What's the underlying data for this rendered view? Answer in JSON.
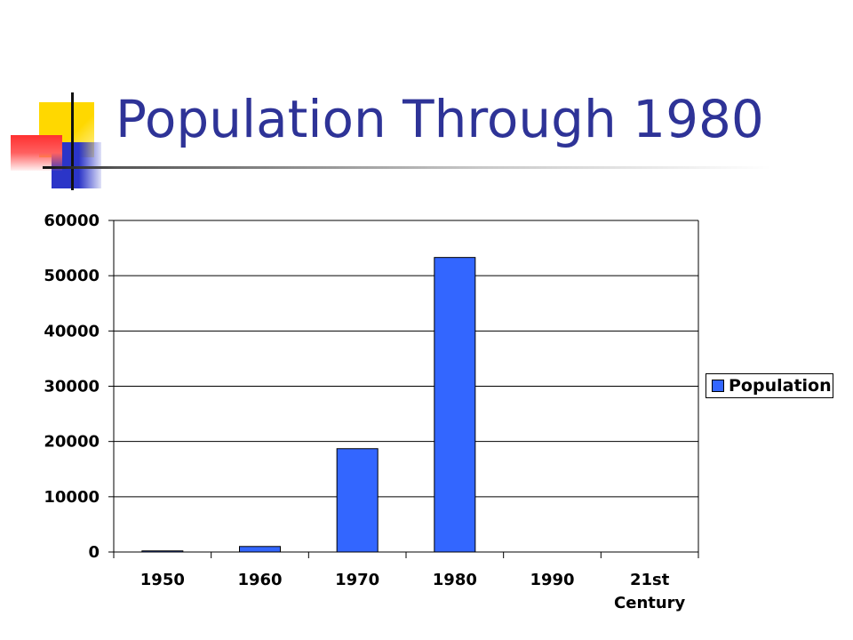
{
  "slide": {
    "title": "Population Through 1980"
  },
  "colors": {
    "title": "#2e3397",
    "bar": "#3366ff",
    "accent_yellow": "#ffd800",
    "accent_blue": "#2b35c8",
    "accent_red": "#ff3030"
  },
  "chart_data": {
    "type": "bar",
    "categories": [
      "1950",
      "1960",
      "1970",
      "1980",
      "1990",
      "21st Century"
    ],
    "category_lines": [
      [
        "1950"
      ],
      [
        "1960"
      ],
      [
        "1970"
      ],
      [
        "1980"
      ],
      [
        "1990"
      ],
      [
        "21st",
        "Century"
      ]
    ],
    "series": [
      {
        "name": "Population",
        "values": [
          200,
          1000,
          18700,
          53300,
          0,
          0
        ]
      }
    ],
    "ylim": [
      0,
      60000
    ],
    "yticks": [
      0,
      10000,
      20000,
      30000,
      40000,
      50000,
      60000
    ],
    "grid": true,
    "legend_position": "right"
  }
}
